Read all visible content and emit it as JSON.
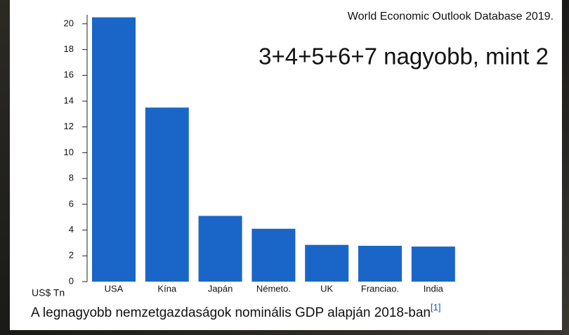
{
  "chart_data": {
    "type": "bar",
    "title": "World Economic Outlook Database 2019.",
    "annotation": "3+4+5+6+7  nagyobb, mint 2",
    "y_label": "US$ Tn",
    "caption": "A legnagyobb nemzetgazdaságok nominális GDP alapján 2018-ban",
    "caption_note": "[1]",
    "categories": [
      "USA",
      "Kína",
      "Japán",
      "Németo.",
      "UK",
      "Franciao.",
      "India"
    ],
    "values": [
      20.5,
      13.5,
      5.1,
      4.1,
      2.85,
      2.78,
      2.72
    ],
    "color": "#1a66c8",
    "ylim": [
      0,
      20.7
    ],
    "yticks": [
      0,
      2,
      4,
      6,
      8,
      10,
      12,
      14,
      16,
      18,
      20
    ]
  }
}
